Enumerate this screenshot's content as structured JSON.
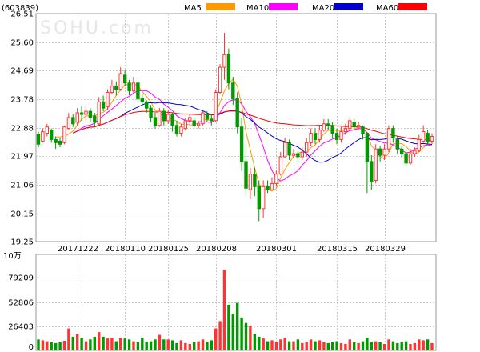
{
  "chart_data": {
    "type": "candlestick",
    "stock_code": "(603839)",
    "watermark": "SOHU.com",
    "price_panel": {
      "ylim": [
        19.25,
        26.51
      ],
      "y_ticks": [
        "26.51",
        "25.60",
        "24.69",
        "23.78",
        "22.88",
        "21.97",
        "21.06",
        "20.15",
        "19.25"
      ],
      "x_ticks": [
        "20171222",
        "20180110",
        "20180125",
        "20180208",
        "20180301",
        "20180315",
        "20180329"
      ]
    },
    "volume_panel": {
      "unit_label": "10万",
      "ylim": [
        0,
        105000
      ],
      "y_ticks": [
        "79209",
        "52806",
        "26403",
        "0"
      ]
    },
    "legend": [
      {
        "name": "MA5",
        "color": "#ff9900"
      },
      {
        "name": "MA10",
        "color": "#ff00ff"
      },
      {
        "name": "MA20",
        "color": "#0000cc"
      },
      {
        "name": "MA60",
        "color": "#ff0000"
      }
    ],
    "colors": {
      "up": "#ff3333",
      "down": "#009900",
      "grid": "#c8c8c8",
      "axis": "#666666"
    },
    "candles": [
      [
        22.65,
        22.35,
        22.75,
        22.25,
        12000
      ],
      [
        22.45,
        22.75,
        22.85,
        22.4,
        11000
      ],
      [
        22.7,
        22.9,
        23.0,
        22.6,
        10000
      ],
      [
        22.8,
        22.5,
        22.85,
        22.4,
        9000
      ],
      [
        22.5,
        22.4,
        22.6,
        22.2,
        8000
      ],
      [
        22.45,
        22.35,
        22.55,
        22.25,
        9000
      ],
      [
        22.4,
        22.9,
        22.95,
        22.35,
        10500
      ],
      [
        22.85,
        23.2,
        23.35,
        22.8,
        24000
      ],
      [
        23.2,
        23.0,
        23.3,
        22.9,
        15000
      ],
      [
        23.05,
        23.35,
        23.5,
        22.95,
        18000
      ],
      [
        23.35,
        23.3,
        23.55,
        23.1,
        14000
      ],
      [
        23.3,
        23.4,
        23.6,
        23.15,
        10000
      ],
      [
        23.4,
        23.2,
        23.5,
        23.05,
        12000
      ],
      [
        23.25,
        23.05,
        23.35,
        22.9,
        15000
      ],
      [
        23.0,
        23.7,
        23.85,
        22.95,
        20000
      ],
      [
        23.7,
        23.5,
        23.9,
        23.4,
        15000
      ],
      [
        23.55,
        24.0,
        24.1,
        23.45,
        13000
      ],
      [
        24.0,
        24.2,
        24.4,
        23.95,
        14000
      ],
      [
        24.2,
        24.1,
        24.35,
        23.9,
        10000
      ],
      [
        24.1,
        24.6,
        24.8,
        24.05,
        14000
      ],
      [
        24.55,
        24.3,
        24.7,
        24.2,
        13000
      ],
      [
        24.3,
        24.05,
        24.4,
        23.9,
        12000
      ],
      [
        24.05,
        24.3,
        24.5,
        23.95,
        10000
      ],
      [
        24.3,
        23.8,
        24.35,
        23.7,
        9000
      ],
      [
        23.8,
        23.7,
        23.95,
        23.6,
        14000
      ],
      [
        23.7,
        23.5,
        23.75,
        23.35,
        9000
      ],
      [
        23.5,
        23.2,
        23.6,
        23.05,
        10000
      ],
      [
        23.2,
        22.95,
        23.35,
        22.85,
        12000
      ],
      [
        22.95,
        23.4,
        23.5,
        22.9,
        17000
      ],
      [
        23.4,
        23.1,
        23.5,
        22.95,
        12000
      ],
      [
        23.1,
        23.3,
        23.45,
        23.0,
        12000
      ],
      [
        23.3,
        22.95,
        23.35,
        22.75,
        11000
      ],
      [
        22.95,
        22.7,
        23.1,
        22.6,
        8000
      ],
      [
        22.7,
        22.9,
        23.0,
        22.6,
        11000
      ],
      [
        22.85,
        23.1,
        23.2,
        22.8,
        8000
      ],
      [
        23.1,
        23.2,
        23.3,
        23.0,
        7000
      ],
      [
        23.1,
        22.95,
        23.2,
        22.85,
        9000
      ],
      [
        22.95,
        23.0,
        23.1,
        22.85,
        10000
      ],
      [
        23.0,
        23.35,
        23.4,
        22.95,
        12000
      ],
      [
        23.3,
        23.15,
        23.4,
        23.05,
        9000
      ],
      [
        23.15,
        23.1,
        23.3,
        22.95,
        11000
      ],
      [
        23.1,
        24.0,
        24.1,
        23.05,
        24000
      ],
      [
        24.0,
        24.8,
        24.9,
        23.95,
        32000
      ],
      [
        24.8,
        25.2,
        25.9,
        24.4,
        88000
      ],
      [
        25.2,
        24.3,
        25.4,
        24.1,
        50000
      ],
      [
        24.3,
        23.8,
        24.5,
        23.6,
        40000
      ],
      [
        23.8,
        22.9,
        24.0,
        22.7,
        52000
      ],
      [
        22.9,
        21.8,
        23.2,
        21.5,
        36000
      ],
      [
        21.8,
        20.95,
        22.4,
        20.7,
        30000
      ],
      [
        20.9,
        21.4,
        21.6,
        20.6,
        27000
      ],
      [
        21.4,
        21.0,
        21.6,
        20.7,
        18000
      ],
      [
        21.0,
        20.3,
        21.2,
        19.9,
        15000
      ],
      [
        20.3,
        21.0,
        21.2,
        20.0,
        13000
      ],
      [
        21.0,
        20.9,
        21.2,
        20.8,
        10000
      ],
      [
        20.9,
        21.1,
        21.3,
        20.9,
        11000
      ],
      [
        21.1,
        21.4,
        21.5,
        21.0,
        9000
      ],
      [
        21.4,
        21.95,
        22.1,
        21.35,
        12000
      ],
      [
        21.95,
        22.4,
        22.55,
        21.9,
        14000
      ],
      [
        22.4,
        22.0,
        22.5,
        21.85,
        10000
      ],
      [
        22.0,
        22.05,
        22.2,
        21.9,
        10000
      ],
      [
        22.05,
        21.95,
        22.2,
        21.8,
        12000
      ],
      [
        21.95,
        22.1,
        22.25,
        21.85,
        8000
      ],
      [
        22.1,
        22.4,
        22.55,
        21.95,
        9000
      ],
      [
        22.4,
        22.7,
        22.85,
        22.3,
        12000
      ],
      [
        22.7,
        22.5,
        22.85,
        22.35,
        10000
      ],
      [
        22.5,
        22.8,
        22.95,
        22.4,
        11000
      ],
      [
        22.8,
        23.0,
        23.15,
        22.75,
        9000
      ],
      [
        23.0,
        22.95,
        23.15,
        22.8,
        8000
      ],
      [
        22.95,
        22.7,
        23.05,
        22.55,
        9000
      ],
      [
        22.7,
        22.5,
        22.85,
        22.35,
        10000
      ],
      [
        22.5,
        22.75,
        22.9,
        22.4,
        8000
      ],
      [
        22.75,
        22.85,
        23.0,
        22.65,
        7000
      ],
      [
        22.85,
        23.1,
        23.2,
        22.8,
        12000
      ],
      [
        23.05,
        22.9,
        23.15,
        22.8,
        9000
      ],
      [
        22.9,
        22.95,
        23.05,
        22.8,
        8000
      ],
      [
        22.9,
        22.7,
        22.95,
        22.5,
        10000
      ],
      [
        22.7,
        21.8,
        22.75,
        20.8,
        14000
      ],
      [
        21.8,
        21.15,
        22.0,
        20.9,
        9000
      ],
      [
        21.2,
        22.2,
        22.35,
        21.1,
        10000
      ],
      [
        22.2,
        22.0,
        22.3,
        21.8,
        9000
      ],
      [
        22.0,
        22.2,
        22.35,
        21.85,
        7000
      ],
      [
        22.2,
        22.85,
        22.95,
        22.1,
        12000
      ],
      [
        22.85,
        22.55,
        22.95,
        22.4,
        10000
      ],
      [
        22.5,
        22.2,
        22.6,
        22.05,
        8000
      ],
      [
        22.2,
        22.05,
        22.3,
        21.9,
        9000
      ],
      [
        22.05,
        21.75,
        22.15,
        21.6,
        10000
      ],
      [
        21.75,
        22.05,
        22.2,
        21.7,
        7000
      ],
      [
        22.05,
        22.15,
        22.25,
        21.95,
        8000
      ],
      [
        22.15,
        22.5,
        22.65,
        22.1,
        12000
      ],
      [
        22.45,
        22.75,
        22.95,
        22.4,
        11000
      ],
      [
        22.7,
        22.45,
        22.8,
        22.35,
        12000
      ],
      [
        22.45,
        22.6,
        22.7,
        22.35,
        8000
      ]
    ]
  }
}
